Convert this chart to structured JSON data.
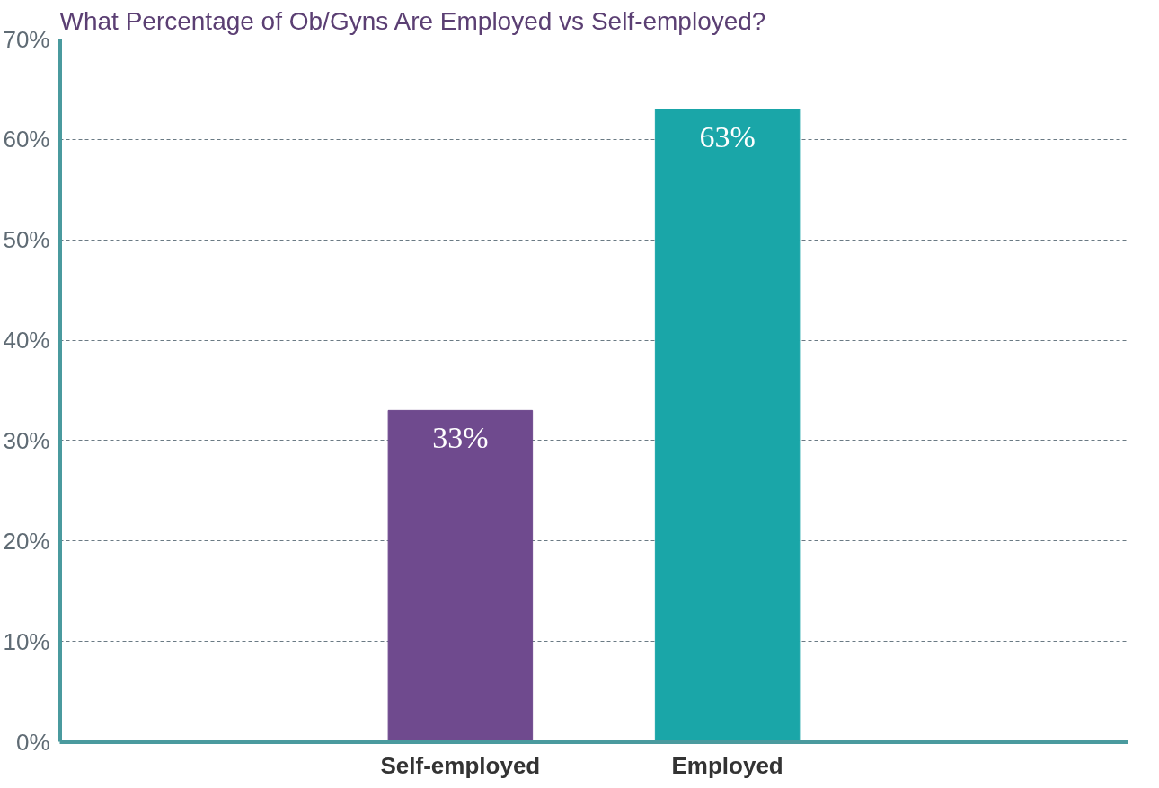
{
  "chart_data": {
    "type": "bar",
    "title": "What Percentage of Ob/Gyns Are Employed vs Self-employed?",
    "categories": [
      null,
      "Self-employed",
      "Employed",
      null
    ],
    "values": [
      null,
      33,
      63,
      null
    ],
    "colors": [
      "#6f4a8e",
      "#6f4a8e",
      "#1aa6a8",
      "#1aa6a8"
    ],
    "value_labels": [
      null,
      "33%",
      "63%",
      null
    ],
    "ylim": [
      0,
      70
    ],
    "yticks": [
      {
        "value": 0,
        "label": "0%"
      },
      {
        "value": 10,
        "label": "10%"
      },
      {
        "value": 20,
        "label": "20%"
      },
      {
        "value": 30,
        "label": "30%"
      },
      {
        "value": 40,
        "label": "40%"
      },
      {
        "value": 50,
        "label": "50%"
      },
      {
        "value": 60,
        "label": "60%"
      },
      {
        "value": 70,
        "label": "70%"
      }
    ],
    "grid": "y"
  }
}
